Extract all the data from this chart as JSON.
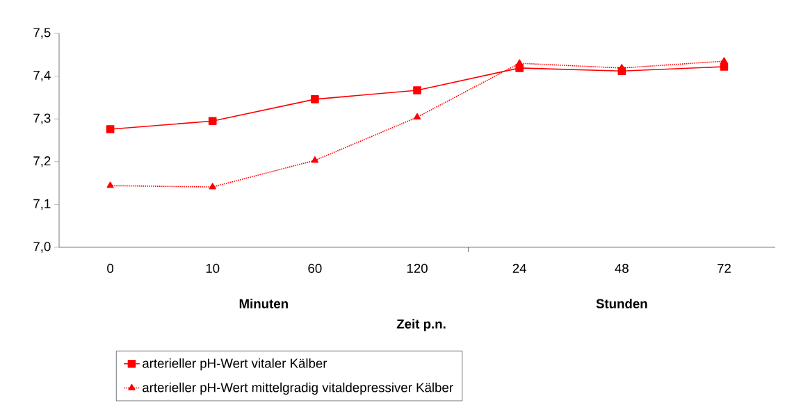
{
  "chart_data": {
    "type": "line",
    "categories": [
      "0",
      "10",
      "60",
      "120",
      "24",
      "48",
      "72"
    ],
    "xlabel": "Zeit p.n.",
    "annotations": [
      "Minuten",
      "Stunden"
    ],
    "ylim": [
      7.0,
      7.5
    ],
    "yticks": [
      {
        "value": 7.0,
        "label": "7,0"
      },
      {
        "value": 7.1,
        "label": "7,1"
      },
      {
        "value": 7.2,
        "label": "7,2"
      },
      {
        "value": 7.3,
        "label": "7,3"
      },
      {
        "value": 7.4,
        "label": "7,4"
      },
      {
        "value": 7.5,
        "label": "7,5"
      }
    ],
    "legend": "bottom",
    "grid": false,
    "series": [
      {
        "name": "arterieller pH-Wert vitaler Kälber",
        "color": "#ff0000",
        "marker": "square",
        "line_style": "solid",
        "values": [
          7.276,
          7.295,
          7.346,
          7.367,
          7.419,
          7.412,
          7.422
        ]
      },
      {
        "name": "arterieller pH-Wert mittelgradig vitaldepressiver Kälber",
        "color": "#ff0000",
        "marker": "triangle",
        "line_style": "dotted",
        "values": [
          7.144,
          7.141,
          7.203,
          7.304,
          7.43,
          7.419,
          7.435
        ]
      }
    ]
  }
}
